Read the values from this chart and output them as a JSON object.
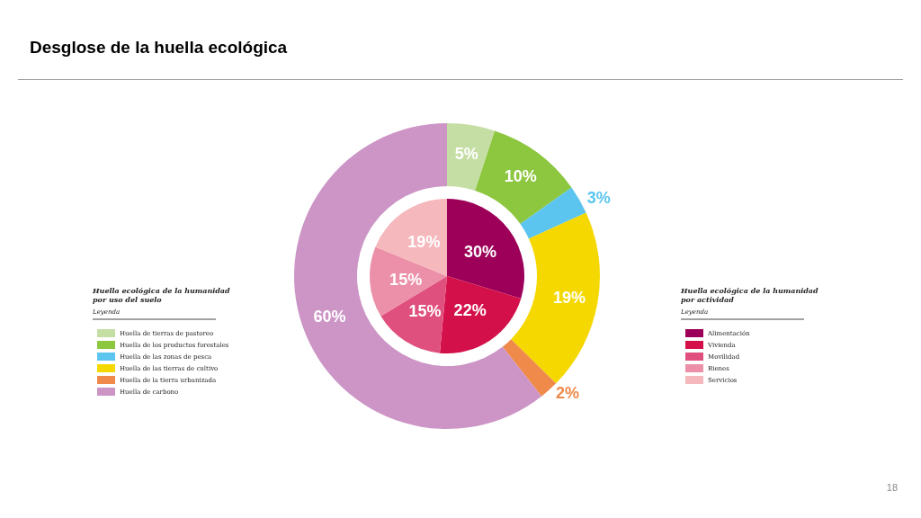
{
  "chart_data": [
    {
      "type": "donut",
      "title": "Desglose de la huella ecológica",
      "legend_title": "Huella ecológica de la humanidad por uso del suelo",
      "annotations": [
        "Leyenda",
        "18"
      ],
      "legend": "left",
      "value_labels": [
        "5%",
        "10%",
        "3%",
        "19%",
        "2%",
        "60%"
      ],
      "categories": [
        "Huella de tierras de pastoreo",
        "Huella de los productos forestales",
        "Huella de las zonas de pesca",
        "Huella de las tierras de cultivo",
        "Huella de la tierra urbanizada",
        "Huella de carbono"
      ],
      "values": [
        5,
        10,
        3,
        19,
        2,
        60
      ],
      "colors": [
        "#c5dea4",
        "#8dc63f",
        "#5bc5ef",
        "#f5d800",
        "#ef8a4a",
        "#cc95c6"
      ]
    },
    {
      "type": "pie",
      "legend_title": "Huella ecológica de la humanidad por actividad",
      "annotations": [
        "Leyenda"
      ],
      "legend": "right",
      "value_labels": [
        "30%",
        "22%",
        "15%",
        "15%",
        "19%"
      ],
      "categories": [
        "Alimentación",
        "Vivienda",
        "Movilidad",
        "Bienes",
        "Servicios"
      ],
      "values": [
        30,
        22,
        15,
        15,
        19
      ],
      "colors": [
        "#9c0058",
        "#d4104a",
        "#e0507e",
        "#ec8fa8",
        "#f5b8bc"
      ]
    }
  ]
}
